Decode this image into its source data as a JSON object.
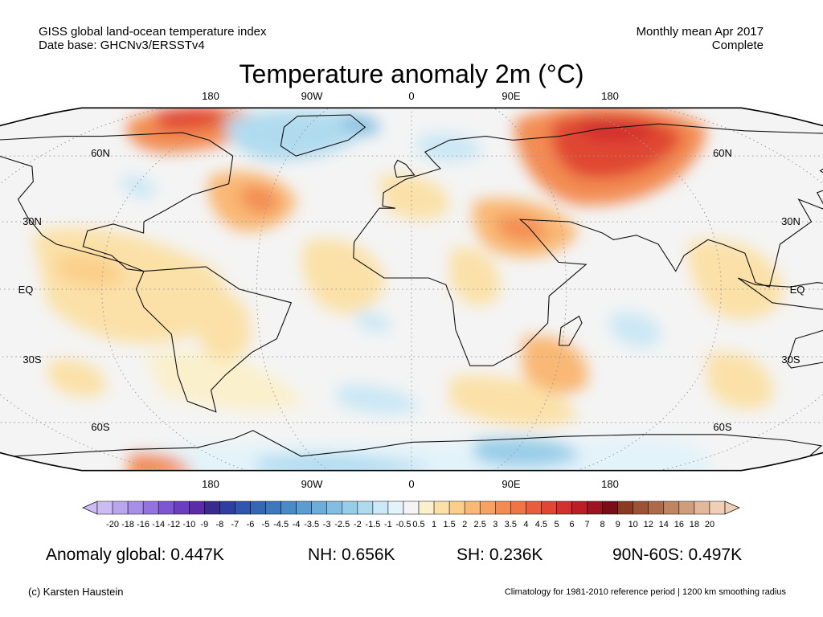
{
  "header": {
    "left_line1": "GISS global land-ocean temperature index",
    "left_line2": "Date base: GHCNv3/ERSSTv4",
    "right_line1": "Monthly mean Apr 2017",
    "right_line2": "Complete"
  },
  "title": "Temperature anomaly 2m (°C)",
  "map": {
    "projection": "Robinson",
    "lon_labels_top": [
      "180",
      "90W",
      "0",
      "90E",
      "180"
    ],
    "lon_labels_bottom": [
      "180",
      "90W",
      "0",
      "90E",
      "180"
    ],
    "lat_labels_left": [
      "60N",
      "30N",
      "EQ",
      "30S",
      "60S"
    ],
    "lat_labels_right": [
      "60N",
      "30N",
      "EQ",
      "30S",
      "60S"
    ]
  },
  "colorbar": {
    "tick_labels": [
      "-20",
      "-18",
      "-16",
      "-14",
      "-12",
      "-10",
      "-9",
      "-8",
      "-7",
      "-6",
      "-5",
      "-4.5",
      "-4",
      "-3.5",
      "-3",
      "-2.5",
      "-2",
      "-1.5",
      "-1",
      "-0.5",
      "0.5",
      "1",
      "1.5",
      "2",
      "2.5",
      "3",
      "3.5",
      "4",
      "4.5",
      "5",
      "6",
      "7",
      "8",
      "9",
      "10",
      "12",
      "14",
      "16",
      "18",
      "20"
    ],
    "colors": [
      "#cbbcf2",
      "#b9a7ee",
      "#a78fe8",
      "#9473df",
      "#7e56d2",
      "#6b3ebf",
      "#5a2ca8",
      "#3a2a8e",
      "#2e3f9f",
      "#2f55ad",
      "#3567b6",
      "#3d78bf",
      "#4a8ac8",
      "#5b9cd1",
      "#6dadd9",
      "#82bee1",
      "#98cde8",
      "#b0dbef",
      "#cae8f5",
      "#e3f3fa",
      "#f4f4f4",
      "#fbf0cc",
      "#fbe1a8",
      "#fbcf8a",
      "#f9b874",
      "#f6a262",
      "#f38c53",
      "#ef7446",
      "#e85d3b",
      "#e04633",
      "#d3302d",
      "#bb1e26",
      "#9d1320",
      "#7a0d17",
      "#8a3a22",
      "#9c5236",
      "#ad6a4b",
      "#bf8462",
      "#d09d7c",
      "#e2b79a",
      "#f0cfb6"
    ]
  },
  "stats": {
    "global": "Anomaly global: 0.447K",
    "nh": "NH: 0.656K",
    "sh": "SH: 0.236K",
    "polar": "90N-60S: 0.497K"
  },
  "footer": {
    "left": "(c) Karsten Haustein",
    "right": "Climatology for 1981-2010 reference period | 1200 km smoothing radius"
  }
}
